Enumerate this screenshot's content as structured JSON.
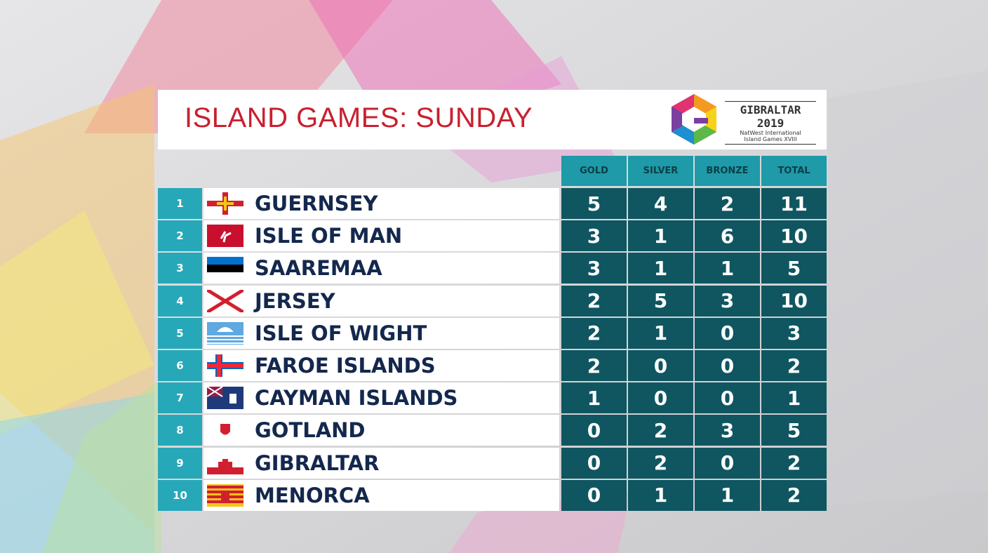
{
  "header": {
    "title": "ISLAND GAMES: SUNDAY",
    "logo": {
      "name": "GIBRALTAR 2019",
      "line1": "NatWest International",
      "line2": "Island Games XVIII"
    }
  },
  "table": {
    "columns": [
      "GOLD",
      "SILVER",
      "BRONZE",
      "TOTAL"
    ],
    "rows": [
      {
        "rank": 1,
        "country": "GUERNSEY",
        "gold": 5,
        "silver": 4,
        "bronze": 2,
        "total": 11
      },
      {
        "rank": 2,
        "country": "ISLE OF MAN",
        "gold": 3,
        "silver": 1,
        "bronze": 6,
        "total": 10
      },
      {
        "rank": 3,
        "country": "SAAREMAA",
        "gold": 3,
        "silver": 1,
        "bronze": 1,
        "total": 5
      },
      {
        "rank": 4,
        "country": "JERSEY",
        "gold": 2,
        "silver": 5,
        "bronze": 3,
        "total": 10
      },
      {
        "rank": 5,
        "country": "ISLE OF WIGHT",
        "gold": 2,
        "silver": 1,
        "bronze": 0,
        "total": 3
      },
      {
        "rank": 6,
        "country": "FAROE ISLANDS",
        "gold": 2,
        "silver": 0,
        "bronze": 0,
        "total": 2
      },
      {
        "rank": 7,
        "country": "CAYMAN ISLANDS",
        "gold": 1,
        "silver": 0,
        "bronze": 0,
        "total": 1
      },
      {
        "rank": 8,
        "country": "GOTLAND",
        "gold": 0,
        "silver": 2,
        "bronze": 3,
        "total": 5
      },
      {
        "rank": 9,
        "country": "GIBRALTAR",
        "gold": 0,
        "silver": 2,
        "bronze": 0,
        "total": 2
      },
      {
        "rank": 10,
        "country": "MENORCA",
        "gold": 0,
        "silver": 1,
        "bronze": 1,
        "total": 2
      }
    ]
  }
}
